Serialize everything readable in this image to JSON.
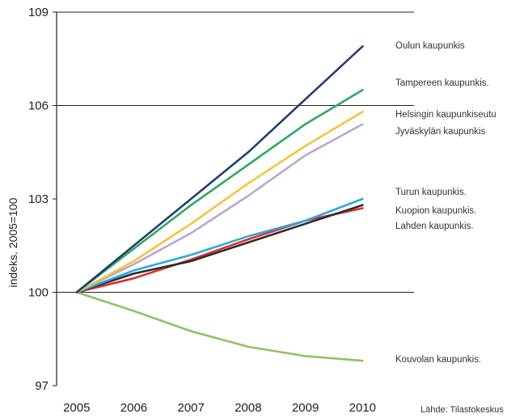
{
  "chart_data": {
    "type": "line",
    "title": "",
    "xlabel": "",
    "ylabel": "indeks. 2005=100",
    "source": "Lähde: Tilastokeskus",
    "x": [
      2005,
      2006,
      2007,
      2008,
      2009,
      2010
    ],
    "x_ticks": [
      "2005",
      "2006",
      "2007",
      "2008",
      "2009",
      "2010"
    ],
    "y_ticks": [
      "97",
      "100",
      "103",
      "106",
      "109"
    ],
    "ylim": [
      97,
      109
    ],
    "xlim": [
      2004.65,
      2010.9
    ],
    "grid": "horizontal lines at 100, 106 and 109",
    "legend": "labels at line ends, right side",
    "series": [
      {
        "name": "Oulun kaupunkis",
        "color": "#1f3f73",
        "values": [
          100,
          101.5,
          103.0,
          104.5,
          106.2,
          107.9
        ]
      },
      {
        "name": "Tampereen kaupunkis.",
        "color": "#2fa860",
        "values": [
          100,
          101.4,
          102.8,
          104.1,
          105.4,
          106.5
        ]
      },
      {
        "name": "Helsingin kaupunkiseutu",
        "color": "#f5c33a",
        "values": [
          100,
          101.0,
          102.2,
          103.5,
          104.7,
          105.8
        ]
      },
      {
        "name": "Jyväskylän kaupunkis",
        "color": "#b8a8d2",
        "values": [
          100,
          100.9,
          101.9,
          103.1,
          104.4,
          105.4
        ]
      },
      {
        "name": "Turun kaupunkis.",
        "color": "#2ca8df",
        "values": [
          100,
          100.7,
          101.2,
          101.8,
          102.3,
          103.0
        ]
      },
      {
        "name": "Kuopion kaupunkis.",
        "color": "#2b2b2b",
        "values": [
          100,
          100.6,
          101.0,
          101.6,
          102.2,
          102.8
        ]
      },
      {
        "name": "Lahden kaupunkis.",
        "color": "#d9322b",
        "values": [
          100,
          100.45,
          101.05,
          101.7,
          102.3,
          102.7
        ]
      },
      {
        "name": "Kouvolan kaupunkis.",
        "color": "#8cc460",
        "values": [
          100,
          99.4,
          98.75,
          98.25,
          97.95,
          97.8
        ]
      }
    ]
  }
}
